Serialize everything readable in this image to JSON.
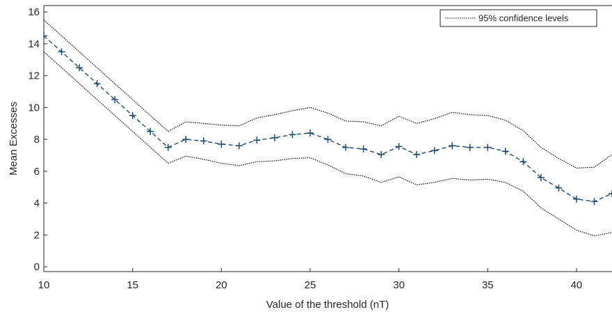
{
  "chart_data": {
    "type": "line",
    "xlabel": "Value of the threshold (nT)",
    "ylabel": "Mean Excesses",
    "x": [
      10,
      11,
      12,
      13,
      14,
      15,
      16,
      17,
      18,
      19,
      20,
      21,
      22,
      23,
      24,
      25,
      26,
      27,
      28,
      29,
      30,
      31,
      32,
      33,
      34,
      35,
      36,
      37,
      38,
      39,
      40,
      41,
      42
    ],
    "series": [
      {
        "color": "#1b4a72",
        "values": [
          14.5,
          13.5,
          12.5,
          11.5,
          10.5,
          9.5,
          8.5,
          7.5,
          8.0,
          7.9,
          7.7,
          7.6,
          7.95,
          8.1,
          8.3,
          8.4,
          8.0,
          7.5,
          7.4,
          7.05,
          7.55,
          7.05,
          7.3,
          7.6,
          7.5,
          7.5,
          7.25,
          6.6,
          5.6,
          4.95,
          4.25,
          4.1,
          4.6
        ]
      }
    ],
    "confidence": {
      "name": "95% confidence levels",
      "color": "#000000",
      "upper": [
        15.5,
        14.5,
        13.5,
        12.5,
        11.5,
        10.5,
        9.5,
        8.5,
        9.1,
        9.0,
        8.9,
        8.85,
        9.35,
        9.55,
        9.8,
        10.0,
        9.65,
        9.15,
        9.1,
        8.85,
        9.45,
        9.0,
        9.3,
        9.7,
        9.55,
        9.5,
        9.2,
        8.55,
        7.5,
        6.8,
        6.2,
        6.25,
        7.05
      ],
      "lower": [
        13.5,
        12.5,
        11.5,
        10.5,
        9.5,
        8.5,
        7.5,
        6.5,
        6.95,
        6.75,
        6.5,
        6.35,
        6.6,
        6.65,
        6.8,
        6.85,
        6.4,
        5.85,
        5.7,
        5.3,
        5.65,
        5.15,
        5.3,
        5.55,
        5.45,
        5.5,
        5.3,
        4.75,
        3.7,
        3.0,
        2.3,
        1.95,
        2.15
      ]
    },
    "xlim": [
      10,
      42
    ],
    "ylim": [
      -0.3,
      16.4
    ],
    "xticks": [
      10,
      15,
      20,
      25,
      30,
      35,
      40
    ],
    "yticks": [
      0,
      2,
      4,
      6,
      8,
      10,
      12,
      14,
      16
    ],
    "legend": "top-right"
  }
}
